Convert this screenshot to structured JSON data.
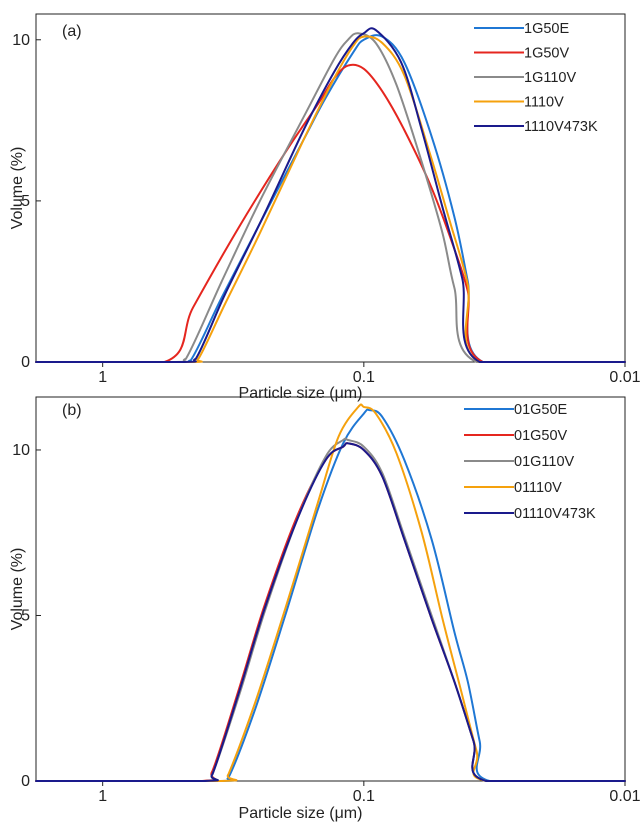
{
  "chart_data": [
    {
      "type": "line",
      "panel_label": "(a)",
      "xlabel": "Particle size (μm)",
      "ylabel": "Volume (%)",
      "x_scale": "log",
      "x_reversed": true,
      "xlim": [
        1.8,
        0.01
      ],
      "ylim": [
        0,
        10.8
      ],
      "xticks": [
        {
          "value": 1,
          "label": "1"
        },
        {
          "value": 0.1,
          "label": "0.1"
        },
        {
          "value": 0.01,
          "label": "0.01"
        }
      ],
      "yticks": [
        {
          "value": 0,
          "label": "0"
        },
        {
          "value": 5,
          "label": "5"
        },
        {
          "value": 10,
          "label": "10"
        }
      ],
      "legend_position": "top-right",
      "series": [
        {
          "name": "1G50E",
          "color": "#1f77d4",
          "x": [
            1.8,
            0.52,
            0.46,
            0.35,
            0.25,
            0.17,
            0.14,
            0.11,
            0.1,
            0.085,
            0.07,
            0.055,
            0.045,
            0.04,
            0.035,
            0.01
          ],
          "y": [
            0,
            0,
            0.05,
            2.0,
            4.3,
            6.9,
            8.2,
            9.6,
            10.0,
            10.1,
            9.3,
            7.0,
            4.5,
            2.5,
            0,
            0
          ]
        },
        {
          "name": "1G50V",
          "color": "#e5261f",
          "x": [
            1.8,
            0.58,
            0.45,
            0.3,
            0.2,
            0.15,
            0.13,
            0.115,
            0.1,
            0.085,
            0.07,
            0.055,
            0.045,
            0.04,
            0.035,
            0.01
          ],
          "y": [
            0,
            0,
            1.7,
            4.2,
            6.5,
            8.0,
            8.8,
            9.2,
            9.1,
            8.4,
            7.2,
            5.4,
            3.5,
            2.2,
            0,
            0
          ]
        },
        {
          "name": "1G110V",
          "color": "#8a8a8a",
          "x": [
            1.8,
            0.54,
            0.48,
            0.35,
            0.25,
            0.17,
            0.13,
            0.115,
            0.105,
            0.09,
            0.075,
            0.06,
            0.05,
            0.045,
            0.037,
            0.01
          ],
          "y": [
            0,
            0,
            0.1,
            2.5,
            5.0,
            7.6,
            9.4,
            10.0,
            10.2,
            9.9,
            8.6,
            6.2,
            4.0,
            2.3,
            0,
            0
          ]
        },
        {
          "name": "1110V",
          "color": "#f5a10d",
          "x": [
            1.8,
            0.47,
            0.43,
            0.34,
            0.25,
            0.17,
            0.13,
            0.11,
            0.1,
            0.085,
            0.07,
            0.056,
            0.047,
            0.04,
            0.036,
            0.01
          ],
          "y": [
            0,
            0,
            0.1,
            1.8,
            4.0,
            6.9,
            8.8,
            9.8,
            10.1,
            9.9,
            8.9,
            6.5,
            4.4,
            2.4,
            0,
            0
          ]
        },
        {
          "name": "1110V473K",
          "color": "#1a1a8c",
          "x": [
            1.8,
            0.5,
            0.44,
            0.34,
            0.24,
            0.17,
            0.13,
            0.11,
            0.1,
            0.09,
            0.072,
            0.06,
            0.05,
            0.042,
            0.036,
            0.01
          ],
          "y": [
            0,
            0,
            0.1,
            2.1,
            4.6,
            7.2,
            9.0,
            9.9,
            10.2,
            10.3,
            9.3,
            7.2,
            4.8,
            2.6,
            0,
            0
          ]
        }
      ]
    },
    {
      "type": "line",
      "panel_label": "(b)",
      "xlabel": "Particle size (μm)",
      "ylabel": "Volume (%)",
      "x_scale": "log",
      "x_reversed": true,
      "xlim": [
        1.8,
        0.01
      ],
      "ylim": [
        0,
        11.6
      ],
      "xticks": [
        {
          "value": 1,
          "label": "1"
        },
        {
          "value": 0.1,
          "label": "0.1"
        },
        {
          "value": 0.01,
          "label": "0.01"
        }
      ],
      "yticks": [
        {
          "value": 0,
          "label": "0"
        },
        {
          "value": 5,
          "label": "5"
        },
        {
          "value": 10,
          "label": "10"
        }
      ],
      "legend_position": "top-right",
      "series": [
        {
          "name": "01G50E",
          "color": "#1f77d4",
          "x": [
            1.8,
            0.36,
            0.33,
            0.26,
            0.2,
            0.15,
            0.12,
            0.1,
            0.095,
            0.085,
            0.07,
            0.055,
            0.045,
            0.04,
            0.036,
            0.033,
            0.01
          ],
          "y": [
            0,
            0,
            0.1,
            2.2,
            5.0,
            8.2,
            10.2,
            11.1,
            11.2,
            11.0,
            9.7,
            7.3,
            4.5,
            3.0,
            1.2,
            0,
            0
          ]
        },
        {
          "name": "01G50V",
          "color": "#e5261f",
          "x": [
            1.8,
            0.42,
            0.38,
            0.3,
            0.24,
            0.18,
            0.14,
            0.12,
            0.115,
            0.1,
            0.085,
            0.07,
            0.055,
            0.045,
            0.038,
            0.034,
            0.01
          ],
          "y": [
            0,
            0,
            0.3,
            2.8,
            5.3,
            8.0,
            9.7,
            10.1,
            10.2,
            10.0,
            9.2,
            7.3,
            4.9,
            3.0,
            1.2,
            0,
            0
          ]
        },
        {
          "name": "01G110V",
          "color": "#8a8a8a",
          "x": [
            1.8,
            0.41,
            0.38,
            0.3,
            0.24,
            0.18,
            0.14,
            0.12,
            0.115,
            0.1,
            0.085,
            0.07,
            0.055,
            0.045,
            0.038,
            0.034,
            0.01
          ],
          "y": [
            0,
            0,
            0.2,
            2.6,
            5.1,
            7.9,
            9.8,
            10.3,
            10.3,
            10.1,
            9.3,
            7.4,
            5.0,
            3.0,
            1.2,
            0,
            0
          ]
        },
        {
          "name": "01110V",
          "color": "#f5a10d",
          "x": [
            1.8,
            0.35,
            0.33,
            0.26,
            0.2,
            0.15,
            0.125,
            0.105,
            0.1,
            0.09,
            0.075,
            0.06,
            0.05,
            0.043,
            0.037,
            0.034,
            0.01
          ],
          "y": [
            0,
            0,
            0.2,
            2.4,
            5.2,
            8.4,
            10.4,
            11.3,
            11.3,
            11.1,
            9.9,
            7.5,
            4.9,
            2.9,
            0.9,
            0,
            0
          ]
        },
        {
          "name": "01110V473K",
          "color": "#1a1a8c",
          "x": [
            1.8,
            0.41,
            0.38,
            0.3,
            0.24,
            0.18,
            0.14,
            0.12,
            0.115,
            0.1,
            0.085,
            0.07,
            0.055,
            0.045,
            0.038,
            0.034,
            0.01
          ],
          "y": [
            0,
            0,
            0.2,
            2.7,
            5.2,
            7.9,
            9.7,
            10.1,
            10.2,
            10.0,
            9.2,
            7.3,
            4.9,
            3.0,
            1.2,
            0,
            0
          ]
        }
      ]
    }
  ]
}
